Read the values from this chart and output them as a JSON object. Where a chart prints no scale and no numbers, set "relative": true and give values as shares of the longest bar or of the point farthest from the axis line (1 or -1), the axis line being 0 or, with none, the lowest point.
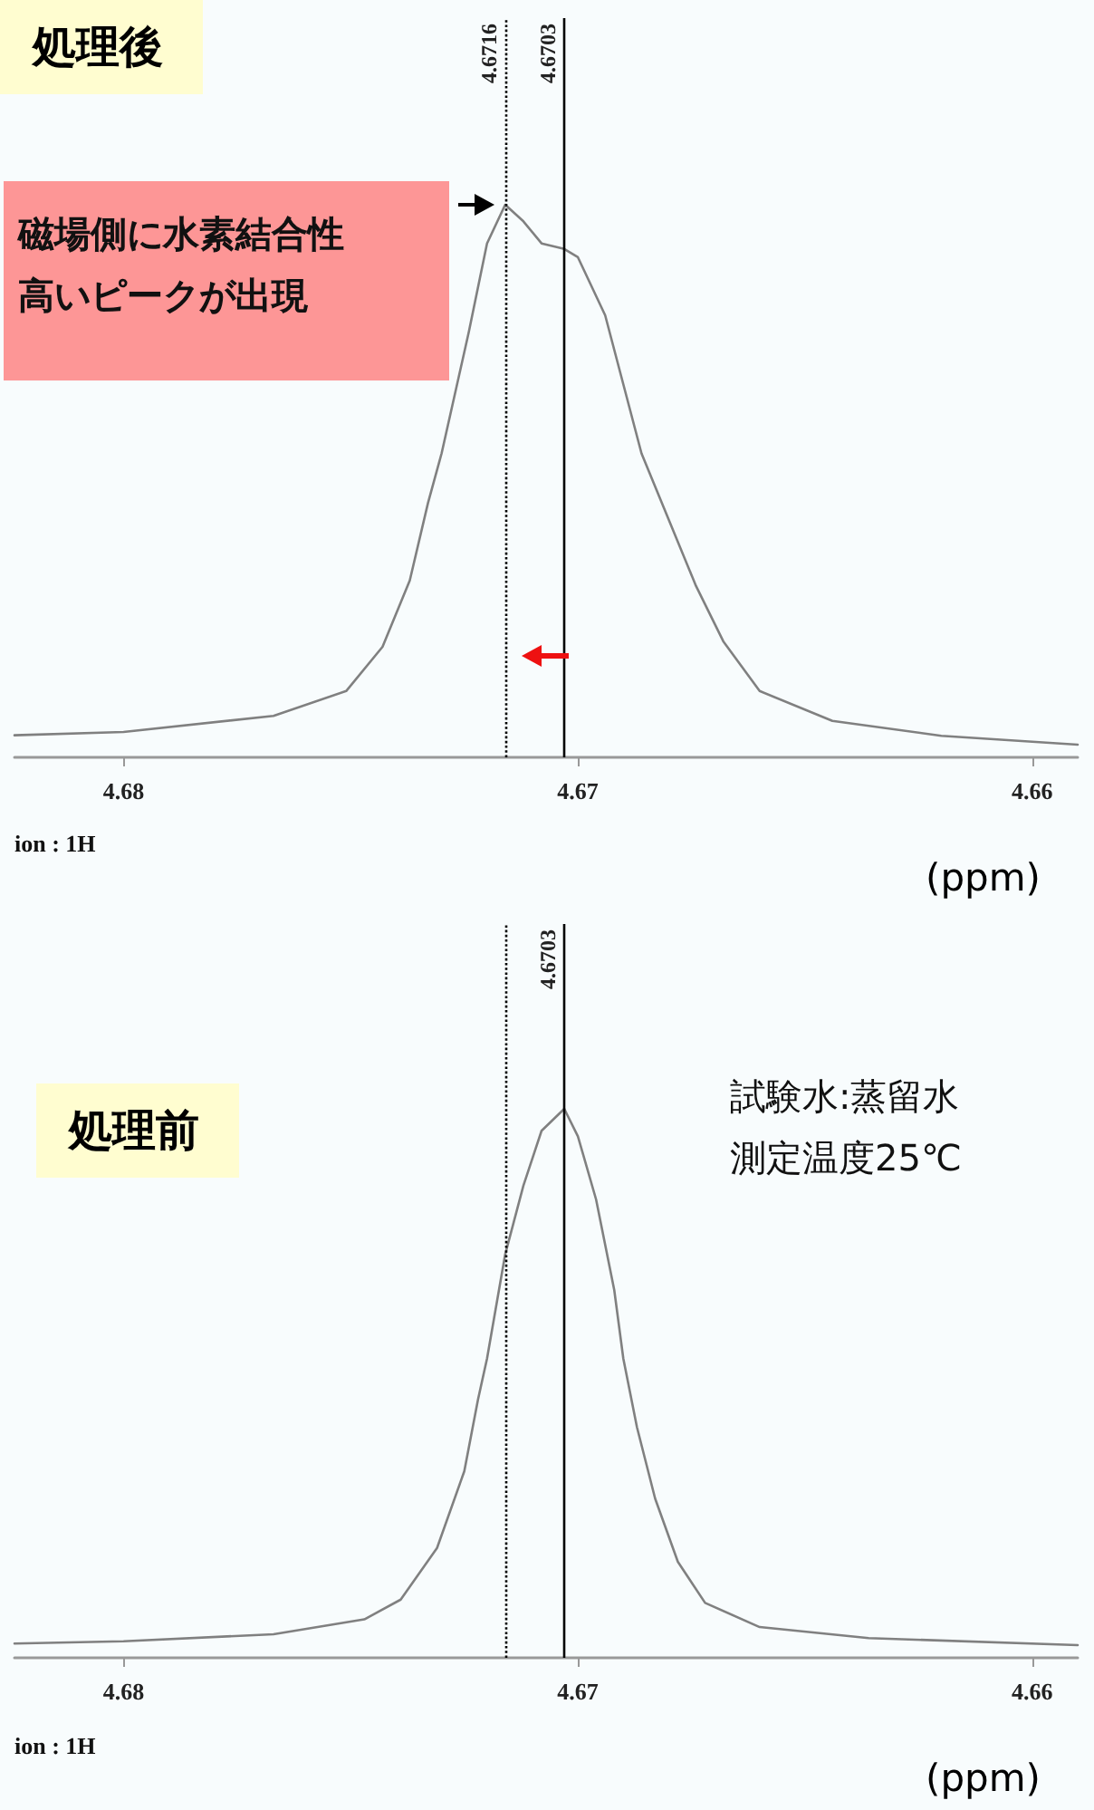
{
  "chart_data": [
    {
      "type": "line",
      "title": "処理後",
      "xlabel": "(ppm)",
      "relative": true,
      "marker": "none",
      "xlim": [
        4.6824,
        4.659
      ],
      "xticks": [
        4.68,
        4.67,
        4.66
      ],
      "annotations": [
        "磁場側に水素結合性高いピークが出現",
        "ion : 1H"
      ],
      "series": [
        {
          "color": "#808080",
          "x": [
            4.6824,
            4.68,
            4.6767,
            4.6751,
            4.6743,
            4.6737,
            4.6733,
            4.673,
            4.6724,
            4.672,
            4.6716,
            4.6712,
            4.6708,
            4.6703,
            4.67,
            4.6694,
            4.669,
            4.6686,
            4.668,
            4.6674,
            4.6668,
            4.666,
            4.6644,
            4.662,
            4.659
          ],
          "values": [
            0.04,
            0.046,
            0.075,
            0.12,
            0.2,
            0.32,
            0.46,
            0.55,
            0.77,
            0.93,
            1.0,
            0.97,
            0.93,
            0.92,
            0.905,
            0.8,
            0.675,
            0.55,
            0.43,
            0.31,
            0.21,
            0.12,
            0.066,
            0.039,
            0.023
          ]
        }
      ],
      "ref_lines": [
        {
          "axis": "x",
          "value": 4.6716,
          "label": "4.6716",
          "color": "#000000",
          "line_style": "dotted"
        },
        {
          "axis": "x",
          "value": 4.6703,
          "label": "4.6703",
          "color": "#000000",
          "line_style": "solid"
        }
      ]
    },
    {
      "type": "line",
      "title": "処理前",
      "xlabel": "(ppm)",
      "relative": true,
      "marker": "none",
      "xlim": [
        4.6824,
        4.659
      ],
      "xticks": [
        4.68,
        4.67,
        4.66
      ],
      "annotations": [
        "試験水:蒸留水測定温度25℃",
        "ion : 1H"
      ],
      "series": [
        {
          "color": "#808080",
          "x": [
            4.6824,
            4.68,
            4.6767,
            4.6747,
            4.6739,
            4.6731,
            4.6725,
            4.6722,
            4.672,
            4.6716,
            4.6712,
            4.6708,
            4.6703,
            4.67,
            4.6696,
            4.6692,
            4.669,
            4.6687,
            4.6683,
            4.6678,
            4.6672,
            4.666,
            4.6636,
            4.659
          ],
          "values": [
            0.026,
            0.03,
            0.043,
            0.07,
            0.106,
            0.2,
            0.34,
            0.47,
            0.545,
            0.735,
            0.86,
            0.96,
            1.0,
            0.95,
            0.835,
            0.67,
            0.545,
            0.42,
            0.29,
            0.175,
            0.1,
            0.056,
            0.036,
            0.023
          ]
        }
      ],
      "ref_lines": [
        {
          "axis": "x",
          "value": 4.6716,
          "label": null,
          "color": "#000000",
          "line_style": "dotted"
        },
        {
          "axis": "x",
          "value": 4.6703,
          "label": "4.6703",
          "color": "#000000",
          "line_style": "solid"
        }
      ]
    }
  ]
}
